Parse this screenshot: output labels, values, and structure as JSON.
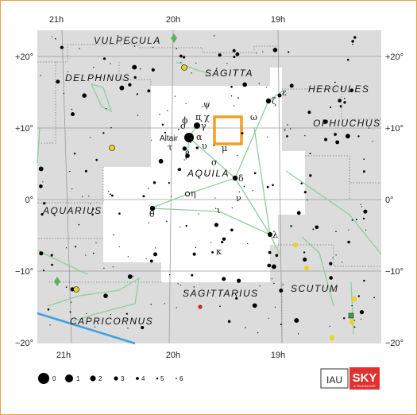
{
  "map": {
    "ra_labels": [
      "21h",
      "20h",
      "19h"
    ],
    "dec_labels": [
      "+20°",
      "+10°",
      "0°",
      "−10°",
      "−20°"
    ],
    "constellations": {
      "vulpecula": "VULPECULA",
      "sagitta": "SAGITTA",
      "delphinus": "DELPHINUS",
      "hercules": "HERCULES",
      "ophiuchus": "OPHIUCHUS",
      "aquila": "AQUILA",
      "aquarius": "AQUARIUS",
      "sagittarius": "SAGITTARIUS",
      "scutum": "SCUTUM",
      "capricornus": "CAPRICORNUS"
    },
    "stars": {
      "altair": "Altair",
      "psi": "ψ",
      "pi": "π",
      "chi": "χ",
      "phi": "ϕ",
      "omicron": "ο",
      "gamma": "γ",
      "omega": "ω",
      "zeta": "ζ",
      "epsilon": "ε",
      "tau": "τ",
      "alpha": "α",
      "upsilon": "υ",
      "mu": "μ",
      "beta": "β",
      "sigma": "σ",
      "delta": "δ",
      "eta": "η",
      "nu": "ν",
      "theta": "θ",
      "iota": "ι",
      "lambda": "λ",
      "kappa": "κ"
    },
    "highlight_color": "#f0a020",
    "ecliptic_color": "#3aa0e0",
    "line_color": "#8ccf9a",
    "region_fill": "#dcdcdc"
  },
  "legend": {
    "magnitudes": [
      "0",
      "1",
      "2",
      "3",
      "4",
      "5",
      "6"
    ]
  },
  "logos": {
    "iau": "IAU",
    "sky": "SKY",
    "telescope": "& TELESCOPE"
  }
}
